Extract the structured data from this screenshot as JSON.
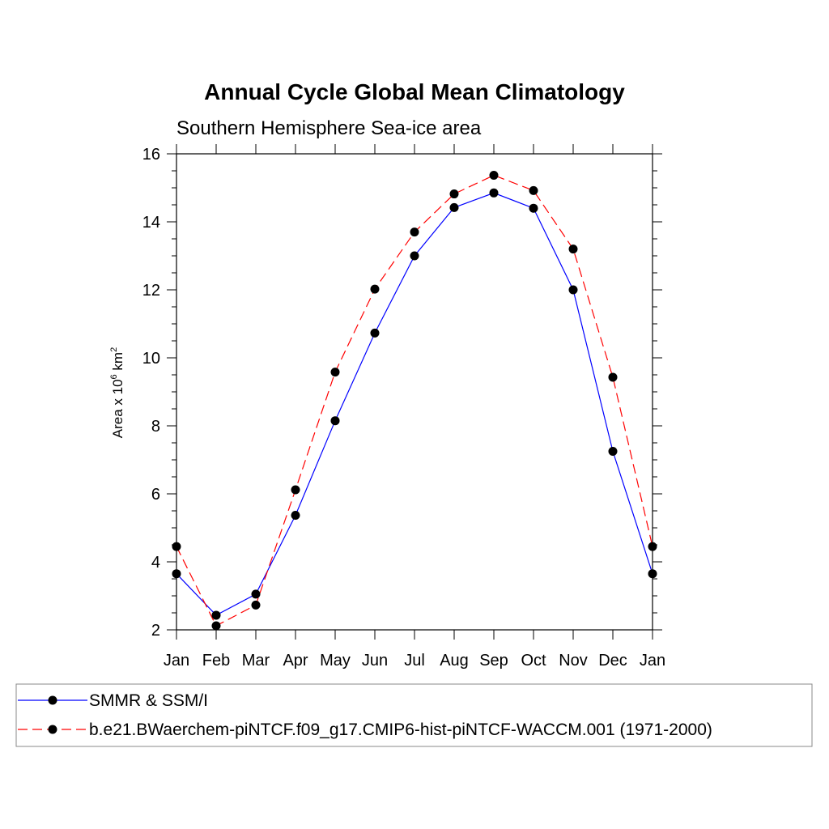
{
  "chart_data": {
    "type": "line",
    "title": "Annual Cycle Global Mean Climatology",
    "subtitle": "Southern Hemisphere Sea-ice area",
    "ylabel": {
      "prefix": "Area x 10",
      "exp1": "6",
      "mid": " km",
      "exp2": "2"
    },
    "ylim": [
      2,
      16
    ],
    "yticks": [
      "2",
      "4",
      "6",
      "8",
      "10",
      "12",
      "14",
      "16"
    ],
    "categories": [
      "Jan",
      "Feb",
      "Mar",
      "Apr",
      "May",
      "Jun",
      "Jul",
      "Aug",
      "Sep",
      "Oct",
      "Nov",
      "Dec",
      "Jan"
    ],
    "grid": false,
    "legend_position": "bottom",
    "series": [
      {
        "name": "SMMR & SSM/I",
        "color": "#0000ff",
        "dash": "solid",
        "values": [
          3.65,
          2.43,
          3.05,
          5.37,
          8.15,
          10.73,
          13.0,
          14.42,
          14.85,
          14.4,
          12.0,
          7.25,
          3.65
        ]
      },
      {
        "name": "b.e21.BWaerchem-piNTCF.f09_g17.CMIP6-hist-piNTCF-WACCM.001 (1971-2000)",
        "color": "#ff0000",
        "dash": "dashed",
        "values": [
          4.45,
          2.12,
          2.73,
          6.12,
          9.58,
          12.02,
          13.7,
          14.82,
          15.37,
          14.92,
          13.2,
          9.43,
          4.45
        ]
      }
    ]
  }
}
